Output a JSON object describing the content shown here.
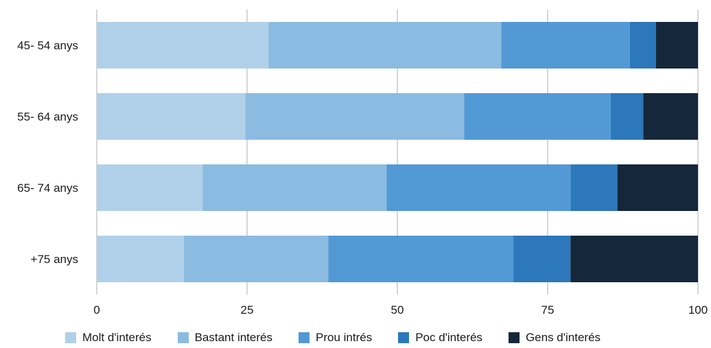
{
  "chart_data": {
    "type": "bar",
    "orientation": "horizontal",
    "stacked": true,
    "categories": [
      "45- 54 anys",
      "55- 64 anys",
      "65- 74 anys",
      "+75 anys"
    ],
    "series": [
      {
        "name": "Molt d'interés",
        "color": "#b0d0ea",
        "values": [
          28.6,
          24.7,
          17.6,
          14.5
        ]
      },
      {
        "name": "Bastant interés",
        "color": "#8bbbe1",
        "values": [
          38.7,
          36.4,
          30.6,
          24.0
        ]
      },
      {
        "name": "Prou intrés",
        "color": "#5299d6",
        "values": [
          21.4,
          24.4,
          30.6,
          30.8
        ]
      },
      {
        "name": "Poc d'interés",
        "color": "#2c78bb",
        "values": [
          4.3,
          5.4,
          7.8,
          9.5
        ]
      },
      {
        "name": "Gens d'interés",
        "color": "#15273a",
        "values": [
          7.0,
          9.1,
          13.4,
          21.2
        ]
      }
    ],
    "xlim": [
      0,
      100
    ],
    "xticks": [
      0,
      25,
      50,
      75,
      100
    ],
    "grid": "vertical",
    "legend_position": "bottom",
    "title": "",
    "xlabel": "",
    "ylabel": ""
  }
}
